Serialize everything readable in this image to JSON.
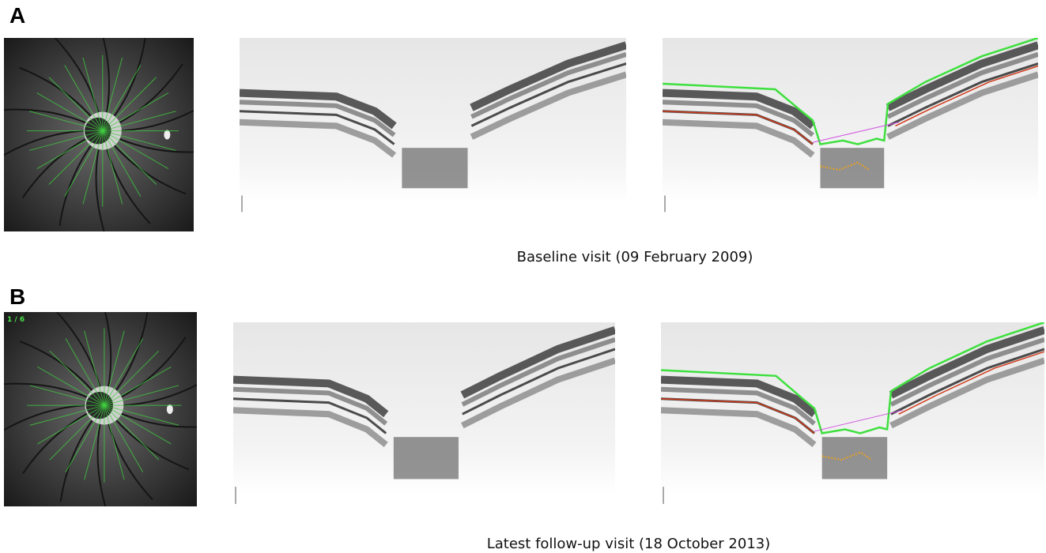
{
  "panels": [
    {
      "label": "A",
      "caption": "Baseline visit (09 February 2009)"
    },
    {
      "label": "B",
      "caption": "Latest follow-up visit (18 October 2013)",
      "counter": "1 / 6"
    }
  ]
}
